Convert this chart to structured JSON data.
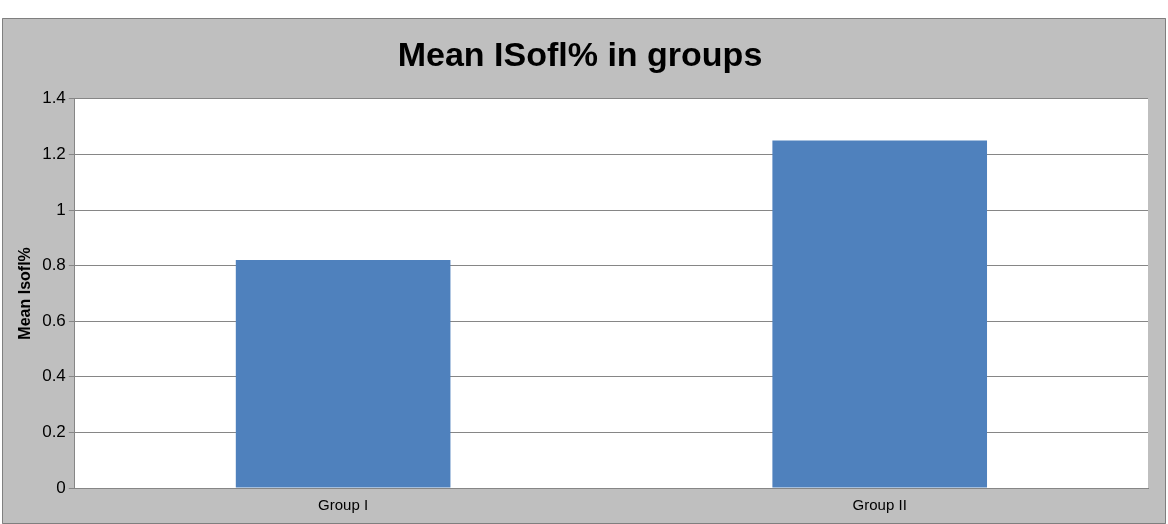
{
  "chart_data": {
    "type": "bar",
    "title": "Mean ISofl% in groups",
    "ylabel": "Mean Isofl%",
    "categories": [
      "Group I",
      "Group II"
    ],
    "values": [
      0.82,
      1.25
    ],
    "color": "#4f81bd",
    "ylim": [
      0,
      1.4
    ],
    "yticks": [
      0,
      0.2,
      0.4,
      0.6,
      0.8,
      1,
      1.2,
      1.4
    ],
    "grid": "y",
    "legend": false
  }
}
